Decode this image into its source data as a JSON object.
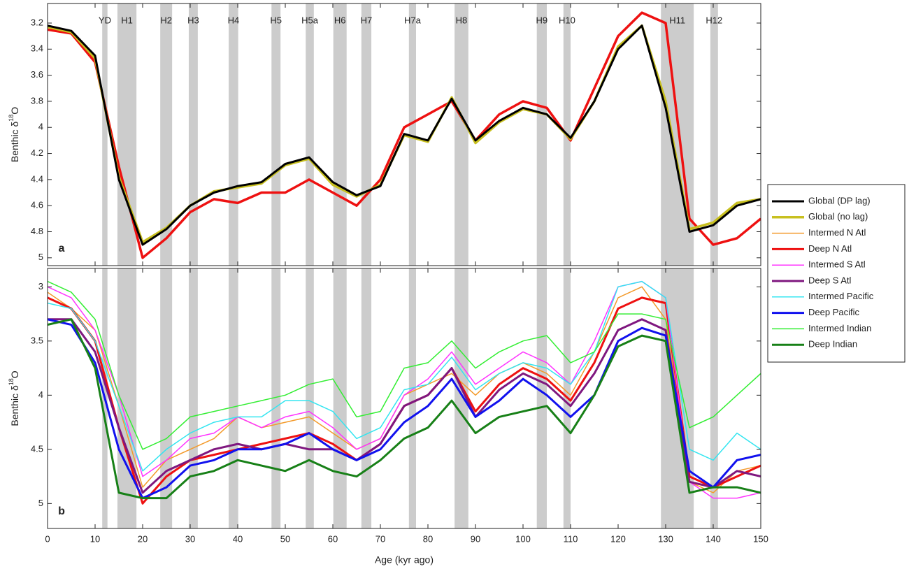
{
  "chart_data": [
    {
      "type": "line",
      "panel_label": "a",
      "y_label": {
        "text": "Benthic δ",
        "sup": "18",
        "after": "O"
      },
      "xlim": [
        0,
        150
      ],
      "ylim": [
        3.05,
        5.06
      ],
      "y_reversed": true,
      "yticks": [
        3.2,
        3.4,
        3.6,
        3.8,
        4,
        4.2,
        4.4,
        4.6,
        4.8,
        5
      ],
      "bands": [
        {
          "label": "YD",
          "x0": 11.5,
          "x1": 12.6
        },
        {
          "label": "H1",
          "x0": 14.7,
          "x1": 18.7
        },
        {
          "label": "H2",
          "x0": 23.7,
          "x1": 26.2
        },
        {
          "label": "H3",
          "x0": 29.7,
          "x1": 31.6
        },
        {
          "label": "H4",
          "x0": 38.1,
          "x1": 40.1
        },
        {
          "label": "H5",
          "x0": 47.1,
          "x1": 49.0
        },
        {
          "label": "H5a",
          "x0": 54.3,
          "x1": 56.0
        },
        {
          "label": "H6",
          "x0": 60.1,
          "x1": 62.9
        },
        {
          "label": "H7",
          "x0": 66.0,
          "x1": 68.1
        },
        {
          "label": "H7a",
          "x0": 76.0,
          "x1": 77.5
        },
        {
          "label": "H8",
          "x0": 85.6,
          "x1": 88.5
        },
        {
          "label": "H9",
          "x0": 102.9,
          "x1": 105.0
        },
        {
          "label": "H10",
          "x0": 108.5,
          "x1": 110.0
        },
        {
          "label": "H11",
          "x0": 129.0,
          "x1": 135.9
        },
        {
          "label": "H12",
          "x0": 139.4,
          "x1": 141.0
        }
      ],
      "x": [
        0,
        5,
        10,
        15,
        20,
        25,
        30,
        35,
        40,
        45,
        50,
        55,
        60,
        65,
        70,
        75,
        80,
        85,
        90,
        95,
        100,
        105,
        110,
        115,
        120,
        125,
        130,
        135,
        140,
        145,
        150
      ],
      "series": [
        {
          "color": "#ee1111",
          "line_width": 3.5,
          "values": [
            3.25,
            3.28,
            3.5,
            4.3,
            5.0,
            4.85,
            4.65,
            4.55,
            4.58,
            4.5,
            4.5,
            4.4,
            4.5,
            4.6,
            4.4,
            4.0,
            3.9,
            3.8,
            4.1,
            3.9,
            3.8,
            3.85,
            4.1,
            3.7,
            3.3,
            3.12,
            3.2,
            4.7,
            4.9,
            4.85,
            4.7
          ]
        },
        {
          "name": "Global (no lag)",
          "color": "#c8c020",
          "line_width": 3.5,
          "values": [
            3.23,
            3.27,
            3.47,
            4.38,
            4.88,
            4.77,
            4.6,
            4.49,
            4.46,
            4.43,
            4.29,
            4.24,
            4.44,
            4.53,
            4.44,
            4.06,
            4.11,
            3.77,
            4.12,
            3.96,
            3.86,
            3.9,
            4.09,
            3.8,
            3.38,
            3.22,
            3.8,
            4.78,
            4.73,
            4.58,
            4.55
          ]
        },
        {
          "name": "Global (DP lag)",
          "color": "#000000",
          "line_width": 3,
          "values": [
            3.22,
            3.26,
            3.45,
            4.4,
            4.9,
            4.78,
            4.6,
            4.5,
            4.45,
            4.42,
            4.28,
            4.23,
            4.42,
            4.52,
            4.45,
            4.05,
            4.1,
            3.78,
            4.1,
            3.95,
            3.85,
            3.9,
            4.08,
            3.8,
            3.4,
            3.22,
            3.85,
            4.8,
            4.75,
            4.6,
            4.55
          ]
        }
      ]
    },
    {
      "type": "line",
      "panel_label": "b",
      "y_label": {
        "text": "Benthic δ",
        "sup": "18",
        "after": "O"
      },
      "x_label": "Age (kyr ago)",
      "xlim": [
        0,
        150
      ],
      "xticks": [
        0,
        10,
        20,
        30,
        40,
        50,
        60,
        70,
        80,
        90,
        100,
        110,
        120,
        130,
        140,
        150
      ],
      "ylim": [
        2.83,
        5.23
      ],
      "y_reversed": true,
      "yticks": [
        3,
        3.5,
        4,
        4.5,
        5
      ],
      "x": [
        0,
        5,
        10,
        15,
        20,
        25,
        30,
        35,
        40,
        45,
        50,
        55,
        60,
        65,
        70,
        75,
        80,
        85,
        90,
        95,
        100,
        105,
        110,
        115,
        120,
        125,
        130,
        135,
        140,
        145,
        150
      ],
      "series": [
        {
          "name": "Intermed N Atl",
          "color": "#f39a2a",
          "line_width": 1.5,
          "values": [
            3.05,
            3.2,
            3.4,
            4.1,
            4.85,
            4.6,
            4.5,
            4.4,
            4.2,
            4.3,
            4.25,
            4.2,
            4.35,
            4.5,
            4.4,
            4.0,
            3.9,
            3.8,
            4.0,
            3.8,
            3.7,
            3.8,
            4.0,
            3.6,
            3.1,
            3.0,
            3.3,
            4.8,
            4.9,
            4.7,
            4.65
          ]
        },
        {
          "name": "Deep N Atl",
          "color": "#ee1111",
          "line_width": 3,
          "values": [
            3.1,
            3.2,
            3.5,
            4.3,
            5.0,
            4.75,
            4.6,
            4.55,
            4.5,
            4.45,
            4.4,
            4.35,
            4.45,
            4.6,
            4.45,
            4.1,
            4.0,
            3.75,
            4.15,
            3.9,
            3.75,
            3.85,
            4.05,
            3.7,
            3.2,
            3.1,
            3.15,
            4.75,
            4.85,
            4.75,
            4.65
          ]
        },
        {
          "name": "Intermed S Atl",
          "color": "#ff33ff",
          "line_width": 1.5,
          "values": [
            3.0,
            3.1,
            3.4,
            4.0,
            4.75,
            4.6,
            4.4,
            4.35,
            4.2,
            4.3,
            4.2,
            4.15,
            4.3,
            4.5,
            4.4,
            4.0,
            3.85,
            3.6,
            3.9,
            3.75,
            3.6,
            3.7,
            3.9,
            3.5,
            3.0,
            2.95,
            3.1,
            4.8,
            4.95,
            4.95,
            4.9
          ]
        },
        {
          "name": "Deep S Atl",
          "color": "#7f177f",
          "line_width": 3,
          "values": [
            3.3,
            3.3,
            3.6,
            4.3,
            4.9,
            4.7,
            4.6,
            4.5,
            4.45,
            4.5,
            4.45,
            4.5,
            4.5,
            4.6,
            4.45,
            4.1,
            4.0,
            3.75,
            4.2,
            3.95,
            3.8,
            3.9,
            4.1,
            3.8,
            3.4,
            3.3,
            3.4,
            4.8,
            4.85,
            4.7,
            4.75
          ]
        },
        {
          "name": "Intermed Pacific",
          "color": "#33e5f0",
          "line_width": 1.5,
          "values": [
            3.15,
            3.2,
            3.5,
            4.1,
            4.7,
            4.5,
            4.35,
            4.25,
            4.2,
            4.2,
            4.05,
            4.05,
            4.15,
            4.4,
            4.3,
            3.95,
            3.9,
            3.65,
            3.95,
            3.8,
            3.7,
            3.75,
            3.9,
            3.6,
            3.0,
            2.95,
            3.1,
            4.5,
            4.6,
            4.35,
            4.5
          ]
        },
        {
          "name": "Deep Pacific",
          "color": "#1111ee",
          "line_width": 3,
          "values": [
            3.3,
            3.35,
            3.7,
            4.5,
            4.95,
            4.85,
            4.65,
            4.6,
            4.5,
            4.5,
            4.45,
            4.35,
            4.5,
            4.6,
            4.5,
            4.25,
            4.1,
            3.85,
            4.2,
            4.05,
            3.85,
            4.0,
            4.2,
            4.0,
            3.5,
            3.38,
            3.45,
            4.7,
            4.85,
            4.6,
            4.55
          ]
        },
        {
          "name": "Intermed Indian",
          "color": "#33ee33",
          "line_width": 1.5,
          "values": [
            2.95,
            3.05,
            3.3,
            4.0,
            4.5,
            4.4,
            4.2,
            4.15,
            4.1,
            4.05,
            4.0,
            3.9,
            3.85,
            4.2,
            4.15,
            3.75,
            3.7,
            3.5,
            3.75,
            3.6,
            3.5,
            3.45,
            3.7,
            3.6,
            3.25,
            3.25,
            3.3,
            4.3,
            4.2,
            4.0,
            3.8
          ]
        },
        {
          "name": "Deep Indian",
          "color": "#178017",
          "line_width": 3,
          "values": [
            3.35,
            3.3,
            3.75,
            4.9,
            4.95,
            4.95,
            4.75,
            4.7,
            4.6,
            4.65,
            4.7,
            4.6,
            4.7,
            4.75,
            4.6,
            4.4,
            4.3,
            4.05,
            4.35,
            4.2,
            4.15,
            4.1,
            4.35,
            4.0,
            3.55,
            3.45,
            3.5,
            4.9,
            4.85,
            4.85,
            4.9
          ]
        }
      ]
    }
  ]
}
